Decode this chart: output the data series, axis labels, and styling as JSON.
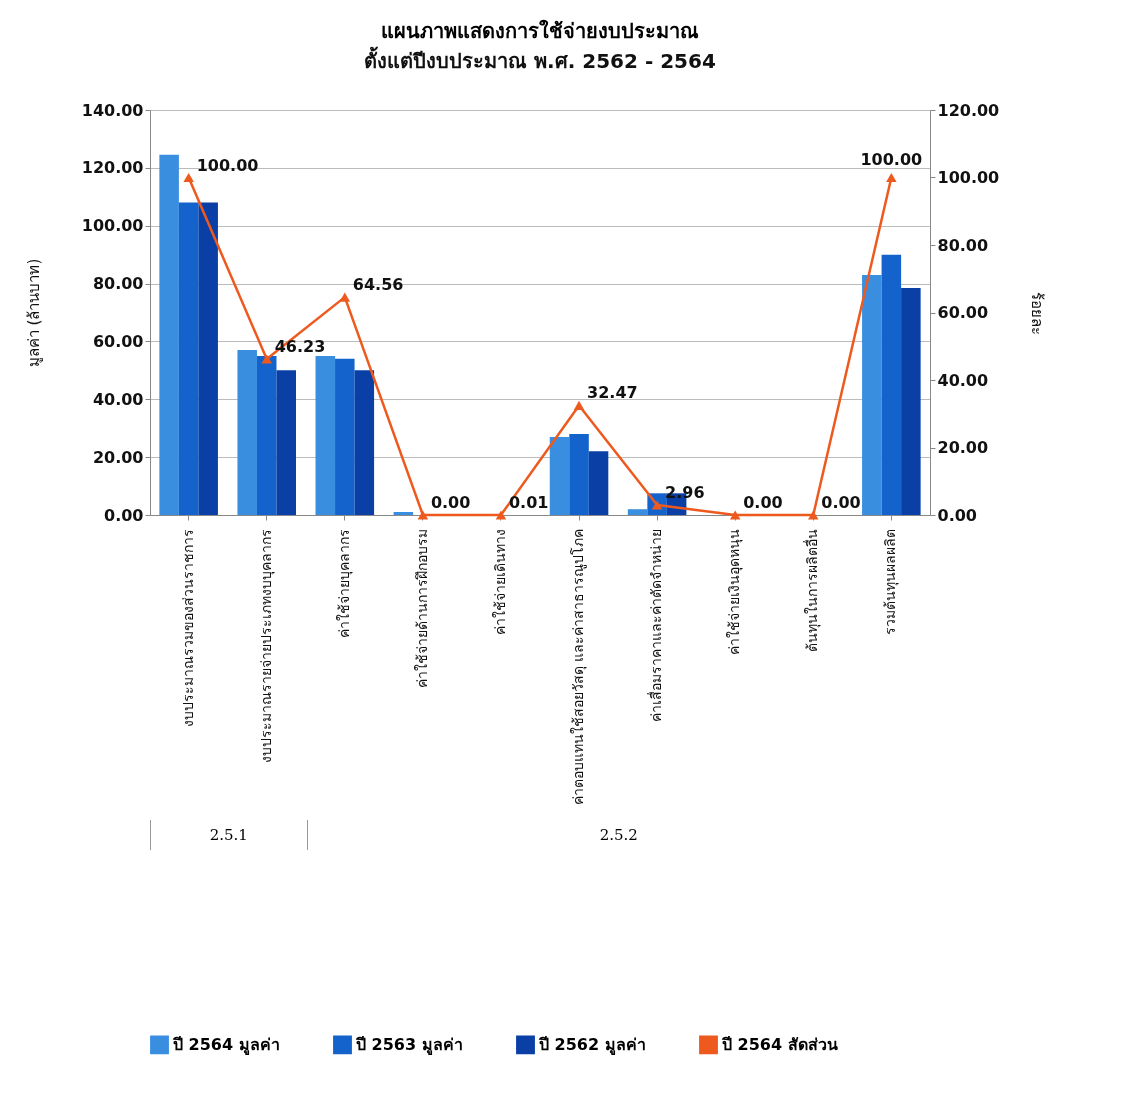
{
  "chart_data": {
    "type": "bar",
    "title": "แผนภาพแสดงการใช้จ่ายงบประมาณ",
    "subtitle": "ตั้งแต่ปีงบประมาณ พ.ศ. 2562 - 2564",
    "ylabel": "มูลค่า (ล้านบาท)",
    "y2label": "ร้อยละ",
    "categories": [
      "งบประมาณรวมของส่วนราชการ",
      "งบประมาณรายจ่ายประเภทงบบุคลากร",
      "ค่าใช้จ่ายบุคลากร",
      "ค่าใช้จ่ายด้านการฝึกอบรม",
      "ค่าใช้จ่ายเดินทาง",
      "ค่าตอบแทนใช้สอยวัสดุ และค่าสาธารณูปโภค",
      "ค่าเสื่อมราคาและค่าตัดจำหน่าย",
      "ค่าใช้จ่ายเงินอุดหนุน",
      "ต้นทุนในการผลิตอื่น",
      "รวมต้นทุนผลผลิต"
    ],
    "series": [
      {
        "name": "ปี 2564 มูลค่า",
        "color": "#3a8ee0",
        "values": [
          124.5,
          57,
          55,
          1,
          null,
          27,
          2,
          0,
          0,
          83
        ]
      },
      {
        "name": "ปี 2563 มูลค่า",
        "color": "#1463cc",
        "values": [
          108,
          55,
          54,
          null,
          null,
          28,
          7.5,
          0,
          0,
          90
        ]
      },
      {
        "name": "ปี 2562 มูลค่า",
        "color": "#0a3fa6",
        "values": [
          108,
          50,
          50,
          0,
          0,
          22,
          7.5,
          0,
          0,
          78.5
        ]
      },
      {
        "name": "ปี 2564 สัดส่วน",
        "color": "#ee5a1e",
        "type": "line",
        "axis": "y2",
        "values": [
          100,
          46.23,
          64.56,
          0,
          0.01,
          32.47,
          2.96,
          0,
          0,
          100
        ],
        "value_labels": [
          "100.00",
          "46.23",
          "64.56",
          "0.00",
          "0.01",
          "32.47",
          "2.96",
          "0.00",
          "0.00",
          "100.00"
        ]
      }
    ],
    "ylim": [
      0,
      140
    ],
    "yticks": [
      {
        "value": 0,
        "label": "0.00"
      },
      {
        "value": 20,
        "label": "20.00"
      },
      {
        "value": 40,
        "label": "40.00"
      },
      {
        "value": 60,
        "label": "60.00"
      },
      {
        "value": 80,
        "label": "80.00"
      },
      {
        "value": 100,
        "label": "100.00"
      },
      {
        "value": 120,
        "label": "120.00"
      },
      {
        "value": 140,
        "label": "140.00"
      }
    ],
    "y2lim": [
      0,
      120
    ],
    "y2ticks": [
      {
        "value": 0,
        "label": "0.00"
      },
      {
        "value": 20,
        "label": "20.00"
      },
      {
        "value": 40,
        "label": "40.00"
      },
      {
        "value": 60,
        "label": "60.00"
      },
      {
        "value": 80,
        "label": "80.00"
      },
      {
        "value": 100,
        "label": "100.00"
      },
      {
        "value": 120,
        "label": "120.00"
      }
    ],
    "annotations": [
      "2.5.1",
      "2.5.2"
    ],
    "marker": "triangle",
    "grid": "y",
    "legend": "bottom"
  }
}
